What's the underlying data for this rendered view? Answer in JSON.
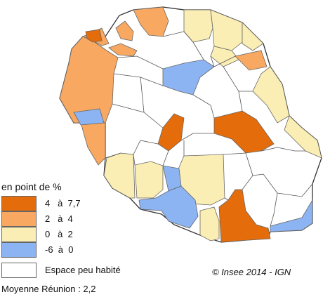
{
  "legend": {
    "title": "en point de %",
    "classes": [
      {
        "min": "4",
        "sep": "à",
        "max": "7,7",
        "color": "#e46c0a"
      },
      {
        "min": "2",
        "sep": "à",
        "max": "4",
        "color": "#f8a860"
      },
      {
        "min": "0",
        "sep": "à",
        "max": "2",
        "color": "#fbeeb4"
      },
      {
        "min": "-6",
        "sep": "à",
        "max": "0",
        "color": "#8cb4f2"
      }
    ],
    "empty_label": "Espace peu habité",
    "empty_color": "#ffffff"
  },
  "copyright": "© Insee 2014 - IGN",
  "moyenne": "Moyenne Réunion : 2,2",
  "colors": {
    "outline": "#333333",
    "inner_line": "#666666"
  }
}
